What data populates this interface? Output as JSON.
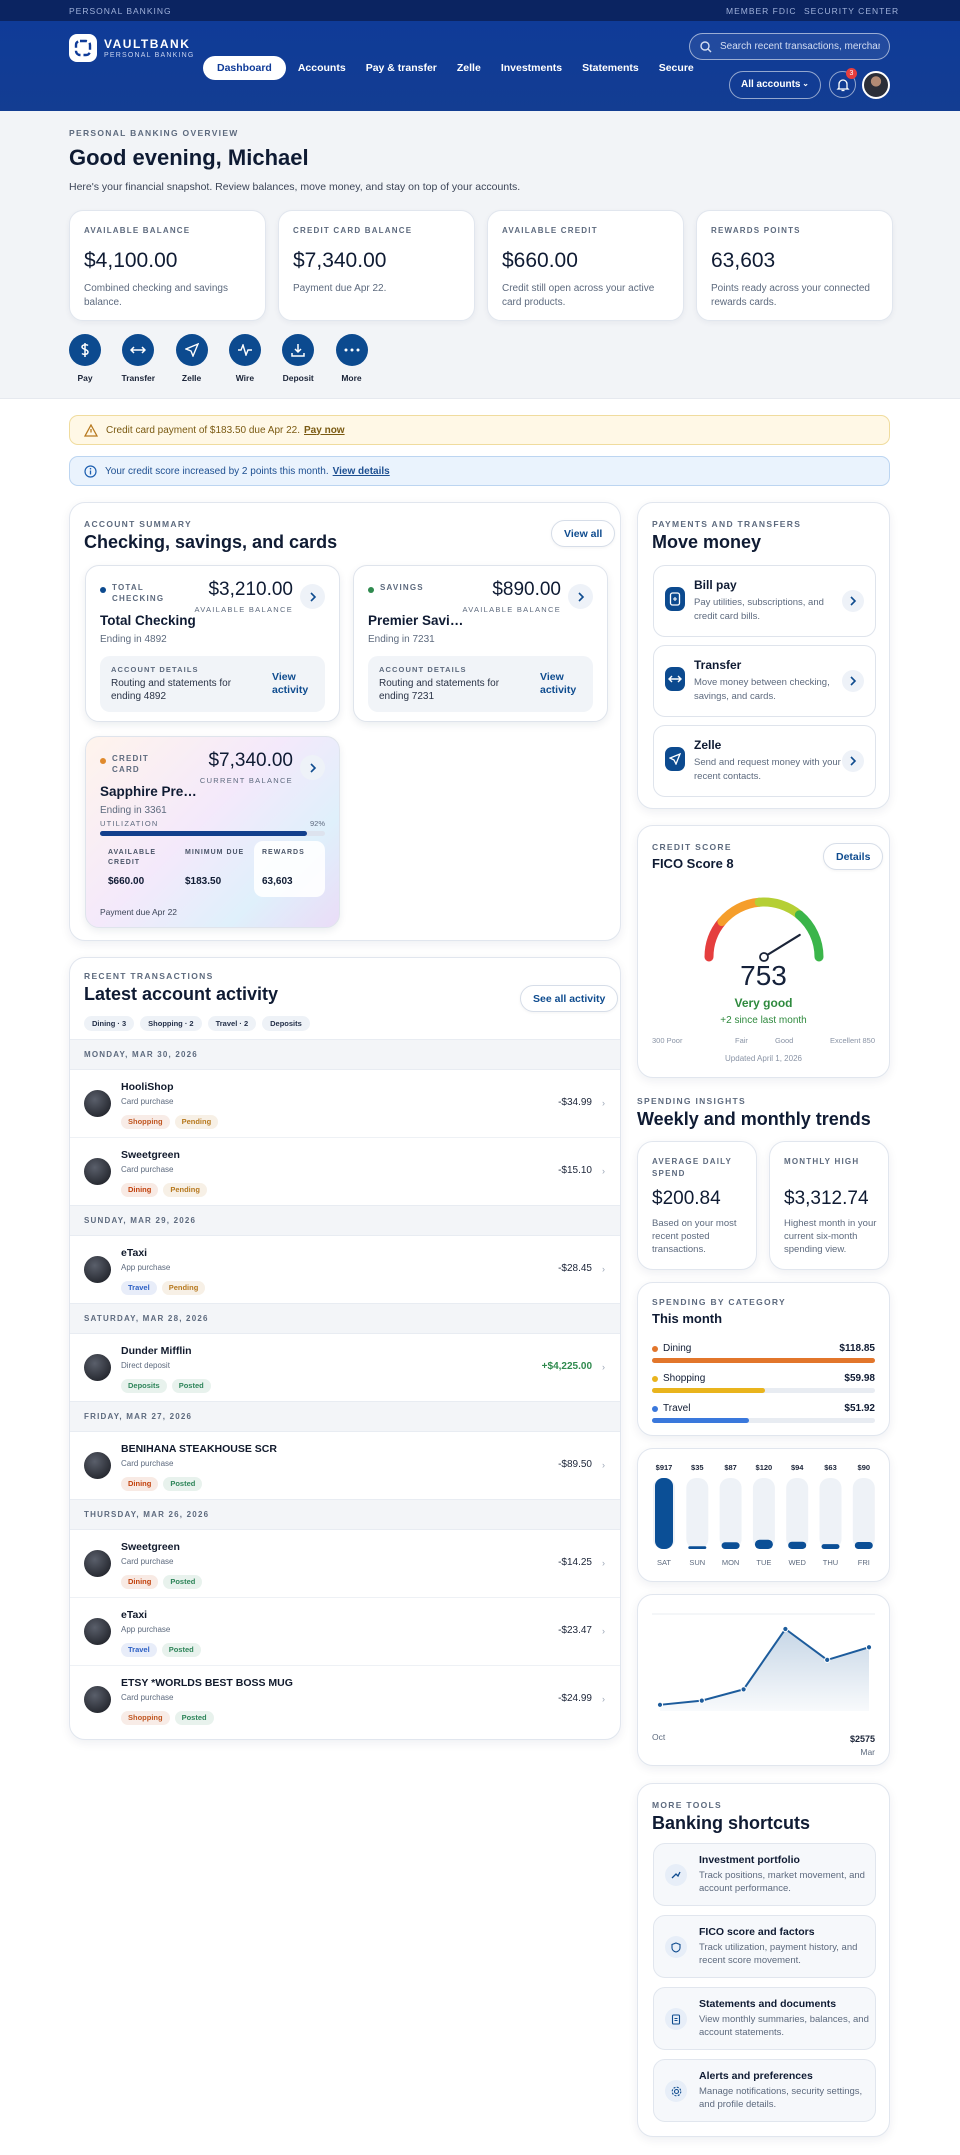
{
  "topbar": {
    "label": "PERSONAL BANKING",
    "links": [
      "MEMBER FDIC",
      "SECURITY CENTER"
    ]
  },
  "header": {
    "brand": "VAULTBANK",
    "tagline": "PERSONAL BANKING",
    "nav": [
      "Dashboard",
      "Accounts",
      "Pay & transfer",
      "Zelle",
      "Investments",
      "Statements",
      "Secure"
    ],
    "search": "Search recent transactions, merchants",
    "account_menu": "All accounts",
    "notification_count": "3"
  },
  "overview": {
    "eyebrow": "PERSONAL BANKING OVERVIEW",
    "title": "Good evening, Michael",
    "subtitle": "Here's your financial snapshot. Review balances, move money, and stay on top of your accounts.",
    "cards": [
      {
        "label": "AVAILABLE BALANCE",
        "value": "$4,100.00",
        "note": "Combined checking and savings balance."
      },
      {
        "label": "CREDIT CARD BALANCE",
        "value": "$7,340.00",
        "note": "Payment due Apr 22."
      },
      {
        "label": "AVAILABLE CREDIT",
        "value": "$660.00",
        "note": "Credit still open across your active card products."
      },
      {
        "label": "REWARDS POINTS",
        "value": "63,603",
        "note": "Points ready across your connected rewards cards."
      }
    ],
    "actions": [
      "Pay",
      "Transfer",
      "Zelle",
      "Wire",
      "Deposit",
      "More"
    ]
  },
  "alerts": [
    {
      "text": "Credit card payment of $183.50 due Apr 22.",
      "link": "Pay now"
    },
    {
      "text": "Your credit score increased by 2 points this month.",
      "link": "View details"
    }
  ],
  "accounts": {
    "eyebrow": "ACCOUNT SUMMARY",
    "title": "Checking, savings, and cards",
    "action": "View all",
    "deposit_accounts": [
      {
        "type": "TOTAL CHECKING",
        "balance": "$3,210.00",
        "balance_label": "AVAILABLE BALANCE",
        "name": "Total Checking",
        "ending": "Ending in 4892",
        "details_label": "ACCOUNT DETAILS",
        "details": "Routing and statements for ending 4892",
        "link": "View activity"
      },
      {
        "type": "SAVINGS",
        "balance": "$890.00",
        "balance_label": "AVAILABLE BALANCE",
        "name": "Premier Savings",
        "ending": "Ending in 7231",
        "details_label": "ACCOUNT DETAILS",
        "details": "Routing and statements for ending 7231",
        "link": "View activity"
      }
    ],
    "credit_card": {
      "type": "CREDIT CARD",
      "balance": "$7,340.00",
      "balance_label": "CURRENT BALANCE",
      "name": "Sapphire Preferred",
      "ending": "Ending in 3361",
      "utilization_label": "UTILIZATION",
      "utilization": {
        "value": 92,
        "label": "92%"
      },
      "stats": [
        {
          "label": "AVAILABLE CREDIT",
          "value": "$660.00"
        },
        {
          "label": "MINIMUM DUE",
          "value": "$183.50"
        },
        {
          "label": "REWARDS",
          "value": "63,603"
        }
      ],
      "footer": "Payment due Apr 22"
    }
  },
  "transactions": {
    "eyebrow": "RECENT TRANSACTIONS",
    "title": "Latest account activity",
    "action": "See all activity",
    "filters": [
      "Dining · 3",
      "Shopping · 2",
      "Travel · 2",
      "Deposits"
    ],
    "tag_colors": {
      "Shopping": "#c05621",
      "Dining": "#c2410c",
      "Travel": "#2b5fc4",
      "Deposits": "#2f855a",
      "Pending": "#b7791f",
      "Posted": "#2f855a"
    },
    "groups": [
      {
        "date": "MONDAY, MAR 30, 2026",
        "items": [
          {
            "merchant": "HooliShop",
            "kind": "Card purchase",
            "tags": [
              "Shopping",
              "Pending"
            ],
            "amount": "-$34.99"
          },
          {
            "merchant": "Sweetgreen",
            "kind": "Card purchase",
            "tags": [
              "Dining",
              "Pending"
            ],
            "amount": "-$15.10"
          }
        ]
      },
      {
        "date": "SUNDAY, MAR 29, 2026",
        "items": [
          {
            "merchant": "eTaxi",
            "kind": "App purchase",
            "tags": [
              "Travel",
              "Pending"
            ],
            "amount": "-$28.45"
          }
        ]
      },
      {
        "date": "SATURDAY, MAR 28, 2026",
        "items": [
          {
            "merchant": "Dunder Mifflin",
            "kind": "Direct deposit",
            "tags": [
              "Deposits",
              "Posted"
            ],
            "amount": "+$4,225.00"
          }
        ]
      },
      {
        "date": "FRIDAY, MAR 27, 2026",
        "items": [
          {
            "merchant": "BENIHANA STEAKHOUSE SCR",
            "kind": "Card purchase",
            "tags": [
              "Dining",
              "Posted"
            ],
            "amount": "-$89.50"
          }
        ]
      },
      {
        "date": "THURSDAY, MAR 26, 2026",
        "items": [
          {
            "merchant": "Sweetgreen",
            "kind": "Card purchase",
            "tags": [
              "Dining",
              "Posted"
            ],
            "amount": "-$14.25"
          },
          {
            "merchant": "eTaxi",
            "kind": "App purchase",
            "tags": [
              "Travel",
              "Posted"
            ],
            "amount": "-$23.47"
          },
          {
            "merchant": "ETSY *WORLDS BEST BOSS MUG",
            "kind": "Card purchase",
            "tags": [
              "Shopping",
              "Posted"
            ],
            "amount": "-$24.99"
          }
        ]
      }
    ]
  },
  "payments": {
    "eyebrow": "PAYMENTS AND TRANSFERS",
    "title": "Move money",
    "items": [
      {
        "title": "Bill pay",
        "desc": "Pay utilities, subscriptions, and credit card bills."
      },
      {
        "title": "Transfer",
        "desc": "Move money between checking, savings, and cards."
      },
      {
        "title": "Zelle",
        "desc": "Send and request money with your recent contacts."
      }
    ]
  },
  "credit_score": {
    "eyebrow": "CREDIT SCORE",
    "title": "FICO Score 8",
    "action": "Details",
    "score": 753,
    "rating": "Very good",
    "change": "+2 since last month",
    "min": {
      "value": 300,
      "label": "300 Poor"
    },
    "max": {
      "value": 850,
      "label": "Excellent 850"
    },
    "bands": [
      "Fair",
      "Good"
    ],
    "updated": "Updated April 1, 2026"
  },
  "insights": {
    "eyebrow": "SPENDING INSIGHTS",
    "title": "Weekly and monthly trends",
    "stats": [
      {
        "label": "AVERAGE DAILY SPEND",
        "value": "$200.84",
        "note": "Based on your most recent posted transactions."
      },
      {
        "label": "MONTHLY HIGH",
        "value": "$3,312.74",
        "note": "Highest month in your current six-month spending view."
      }
    ]
  },
  "chart_data": [
    {
      "type": "hbar",
      "subtitle": "SPENDING BY CATEGORY",
      "title": "This month",
      "categories": [
        "Dining",
        "Shopping",
        "Travel"
      ],
      "values": [
        118.85,
        59.98,
        51.92
      ],
      "value_labels": [
        "$118.85",
        "$59.98",
        "$51.92"
      ],
      "colors": [
        "#e2762b",
        "#e9b41d",
        "#3a78dc"
      ]
    },
    {
      "type": "bar",
      "categories": [
        "SAT",
        "SUN",
        "MON",
        "TUE",
        "WED",
        "THU",
        "FRI"
      ],
      "values": [
        917,
        35,
        87,
        120,
        94,
        63,
        90
      ],
      "value_labels": [
        "$917",
        "$35",
        "$87",
        "$120",
        "$94",
        "$63",
        "$90"
      ],
      "color": "#0b4f96"
    },
    {
      "type": "line",
      "categories": [
        "Oct",
        null,
        null,
        null,
        null,
        "Mar"
      ],
      "values": [
        250,
        420,
        874,
        3312.74,
        2064,
        2575
      ],
      "value_labels": [
        null,
        null,
        null,
        null,
        null,
        "$2575"
      ],
      "color": "#1d5c9c"
    }
  ],
  "more_tools": {
    "eyebrow": "MORE TOOLS",
    "title": "Banking shortcuts",
    "items": [
      {
        "title": "Investment portfolio",
        "desc": "Track positions, market movement, and account performance."
      },
      {
        "title": "FICO score and factors",
        "desc": "Track utilization, payment history, and recent score movement."
      },
      {
        "title": "Statements and documents",
        "desc": "View monthly summaries, balances, and account statements."
      },
      {
        "title": "Alerts and preferences",
        "desc": "Manage notifications, security settings, and profile details."
      }
    ]
  }
}
